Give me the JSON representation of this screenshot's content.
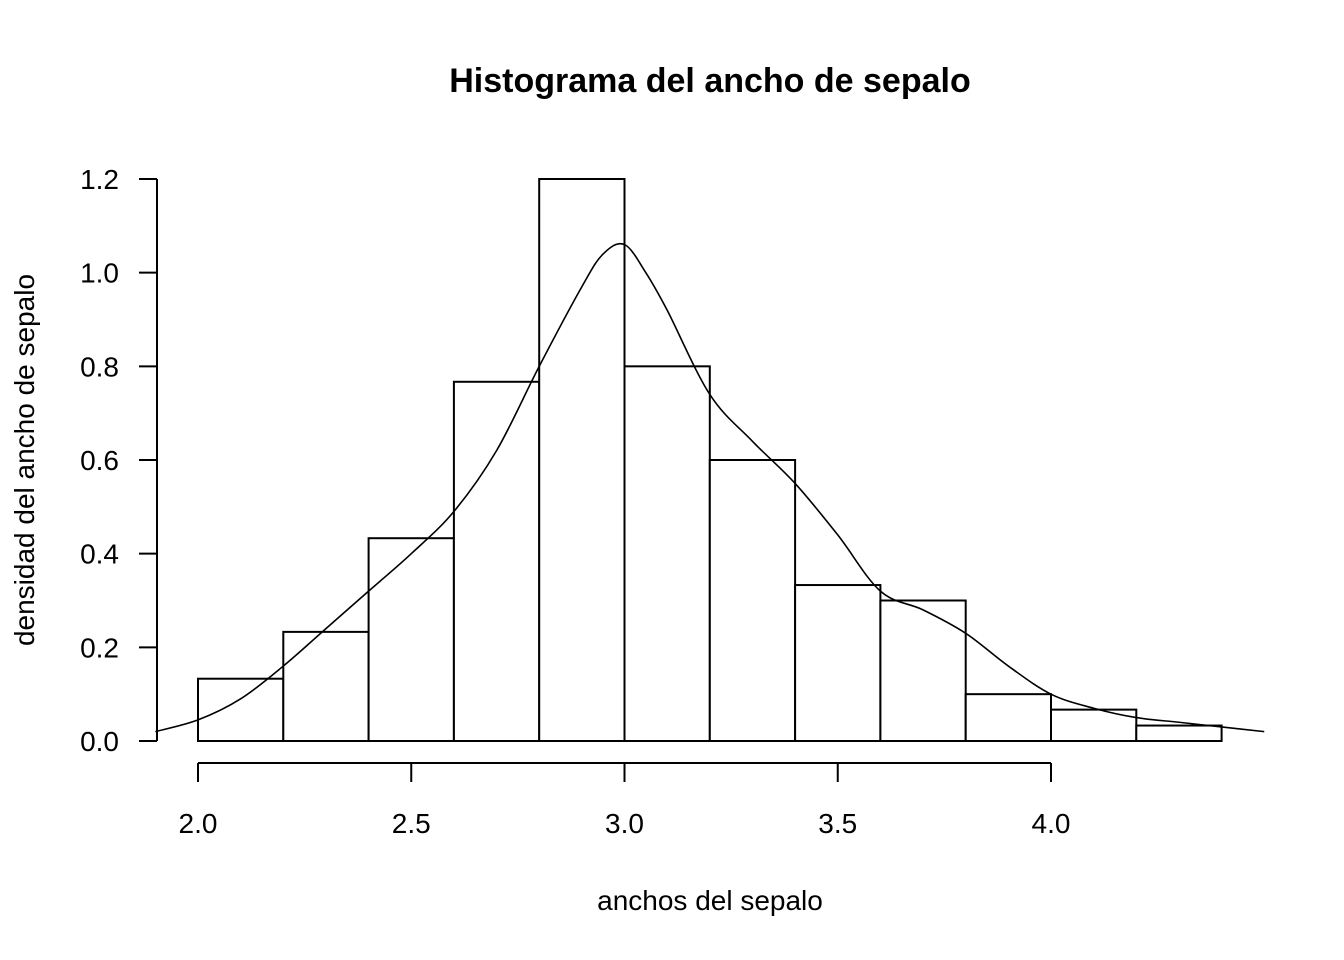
{
  "chart_data": {
    "type": "bar",
    "title": "Histograma del ancho de sepalo",
    "xlabel": "anchos del sepalo",
    "ylabel": "densidad del ancho de sepalo",
    "xlim": [
      1.9,
      4.5
    ],
    "ylim": [
      0,
      1.2
    ],
    "x_ticks": [
      {
        "value": 2.0,
        "label": "2.0"
      },
      {
        "value": 2.5,
        "label": "2.5"
      },
      {
        "value": 3.0,
        "label": "3.0"
      },
      {
        "value": 3.5,
        "label": "3.5"
      },
      {
        "value": 4.0,
        "label": "4.0"
      }
    ],
    "y_ticks": [
      {
        "value": 0.0,
        "label": "0.0"
      },
      {
        "value": 0.2,
        "label": "0.2"
      },
      {
        "value": 0.4,
        "label": "0.4"
      },
      {
        "value": 0.6,
        "label": "0.6"
      },
      {
        "value": 0.8,
        "label": "0.8"
      },
      {
        "value": 1.0,
        "label": "1.0"
      },
      {
        "value": 1.2,
        "label": "1.2"
      }
    ],
    "bins": [
      {
        "x0": 2.0,
        "x1": 2.2,
        "density": 0.133
      },
      {
        "x0": 2.2,
        "x1": 2.4,
        "density": 0.233
      },
      {
        "x0": 2.4,
        "x1": 2.6,
        "density": 0.433
      },
      {
        "x0": 2.6,
        "x1": 2.8,
        "density": 0.767
      },
      {
        "x0": 2.8,
        "x1": 3.0,
        "density": 1.2
      },
      {
        "x0": 3.0,
        "x1": 3.2,
        "density": 0.8
      },
      {
        "x0": 3.2,
        "x1": 3.4,
        "density": 0.6
      },
      {
        "x0": 3.4,
        "x1": 3.6,
        "density": 0.333
      },
      {
        "x0": 3.6,
        "x1": 3.8,
        "density": 0.3
      },
      {
        "x0": 3.8,
        "x1": 4.0,
        "density": 0.1
      },
      {
        "x0": 4.0,
        "x1": 4.2,
        "density": 0.067
      },
      {
        "x0": 4.2,
        "x1": 4.4,
        "density": 0.033
      }
    ],
    "density_curve": {
      "x": [
        1.9,
        2.0,
        2.1,
        2.2,
        2.3,
        2.4,
        2.5,
        2.6,
        2.7,
        2.8,
        2.9,
        2.95,
        3.0,
        3.05,
        3.1,
        3.2,
        3.3,
        3.4,
        3.5,
        3.6,
        3.7,
        3.8,
        3.9,
        4.0,
        4.1,
        4.2,
        4.3,
        4.4,
        4.5
      ],
      "y": [
        0.02,
        0.045,
        0.09,
        0.16,
        0.24,
        0.32,
        0.4,
        0.49,
        0.62,
        0.8,
        0.97,
        1.04,
        1.06,
        1.0,
        0.92,
        0.74,
        0.64,
        0.55,
        0.44,
        0.32,
        0.28,
        0.23,
        0.16,
        0.1,
        0.07,
        0.05,
        0.04,
        0.03,
        0.02
      ]
    },
    "grid": false,
    "legend": "none"
  }
}
